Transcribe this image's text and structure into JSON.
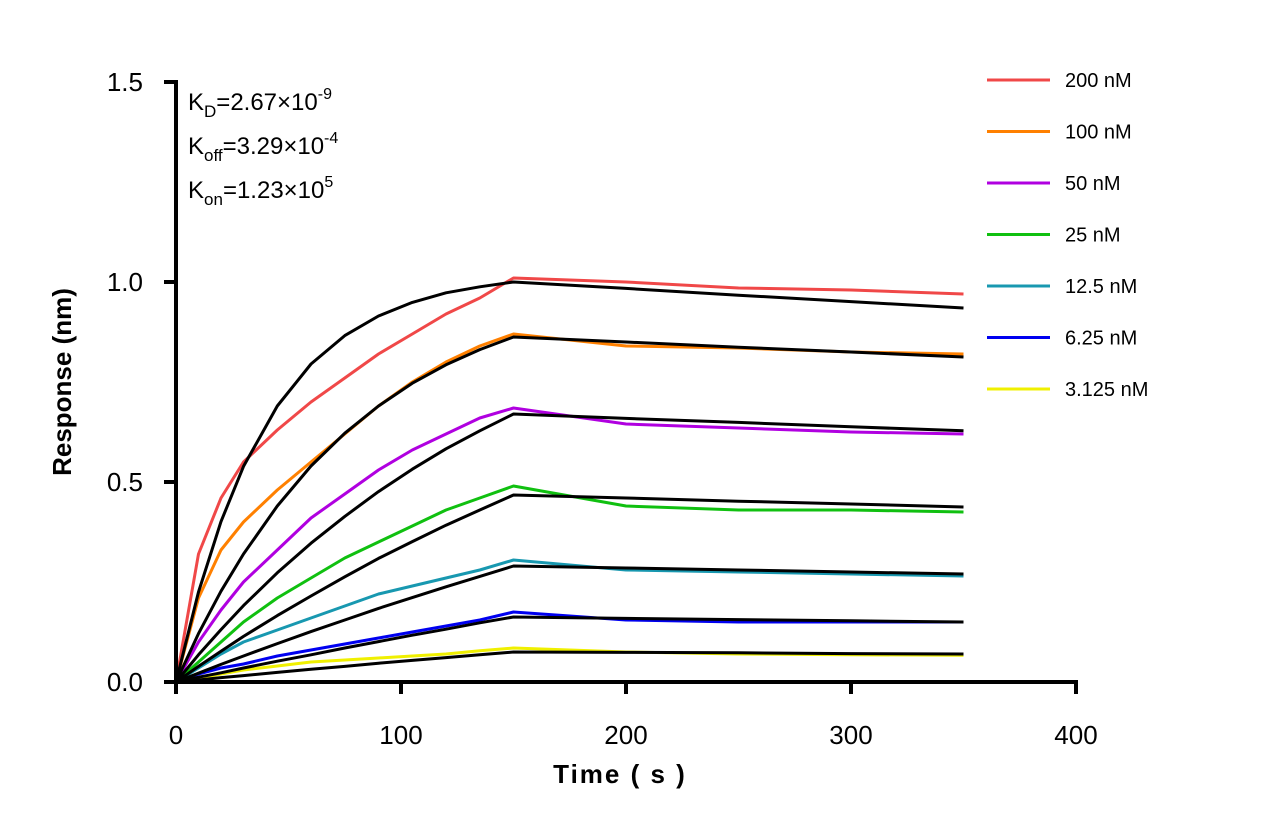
{
  "chart_data": {
    "type": "line",
    "xlabel": "Time ( s )",
    "ylabel": "Response (nm)",
    "xlim": [
      0,
      400
    ],
    "ylim": [
      0,
      1.5
    ],
    "xticks": [
      0,
      100,
      200,
      300,
      400
    ],
    "xtick_labels": [
      "0",
      "100",
      "200",
      "300",
      "400"
    ],
    "yticks": [
      0,
      0.5,
      1.0,
      1.5
    ],
    "ytick_labels": [
      "0.0",
      "0.5",
      "1.0",
      "1.5"
    ],
    "grid": false,
    "legend_position": "top-right",
    "annotations": [
      {
        "symbol": "K",
        "sub": "D",
        "value": "=2.67×10",
        "exp": "-9"
      },
      {
        "symbol": "K",
        "sub": "off",
        "value": "=3.29×10",
        "exp": "-4"
      },
      {
        "symbol": "K",
        "sub": "on",
        "value": "=1.23×10",
        "exp": "5"
      }
    ],
    "x": [
      0,
      10,
      20,
      30,
      45,
      60,
      75,
      90,
      105,
      120,
      135,
      150,
      200,
      250,
      300,
      350
    ],
    "fit_color": "#000000",
    "series": [
      {
        "name": "200 nM",
        "color": "#f04848",
        "values": [
          0,
          0.32,
          0.46,
          0.55,
          0.63,
          0.7,
          0.76,
          0.82,
          0.87,
          0.92,
          0.96,
          1.01,
          1.0,
          0.985,
          0.98,
          0.97
        ],
        "fit": [
          0,
          0.225,
          0.401,
          0.539,
          0.69,
          0.795,
          0.866,
          0.915,
          0.949,
          0.973,
          0.988,
          1.0,
          0.984,
          0.967,
          0.951,
          0.935
        ]
      },
      {
        "name": "100 nM",
        "color": "#ff8000",
        "values": [
          0,
          0.21,
          0.33,
          0.4,
          0.48,
          0.55,
          0.62,
          0.69,
          0.75,
          0.8,
          0.84,
          0.87,
          0.84,
          0.835,
          0.825,
          0.82
        ],
        "fit": [
          0,
          0.121,
          0.227,
          0.32,
          0.44,
          0.54,
          0.622,
          0.69,
          0.747,
          0.793,
          0.831,
          0.8625,
          0.85,
          0.837,
          0.825,
          0.8125
        ]
      },
      {
        "name": "50 nM",
        "color": "#b000e0",
        "values": [
          0,
          0.1,
          0.18,
          0.25,
          0.33,
          0.41,
          0.47,
          0.53,
          0.58,
          0.62,
          0.66,
          0.685,
          0.645,
          0.635,
          0.625,
          0.62
        ],
        "fit": [
          0,
          0.068,
          0.131,
          0.191,
          0.273,
          0.347,
          0.414,
          0.476,
          0.532,
          0.583,
          0.628,
          0.67,
          0.659,
          0.649,
          0.638,
          0.628
        ]
      },
      {
        "name": "25 nM",
        "color": "#10c010",
        "values": [
          0,
          0.05,
          0.1,
          0.15,
          0.21,
          0.26,
          0.31,
          0.35,
          0.39,
          0.43,
          0.46,
          0.49,
          0.44,
          0.43,
          0.43,
          0.425
        ],
        "fit": [
          0,
          0.039,
          0.077,
          0.114,
          0.166,
          0.215,
          0.263,
          0.309,
          0.351,
          0.392,
          0.43,
          0.4675,
          0.46,
          0.452,
          0.445,
          0.4375
        ]
      },
      {
        "name": "12.5 nM",
        "color": "#1898b0",
        "values": [
          0,
          0.035,
          0.07,
          0.1,
          0.13,
          0.16,
          0.19,
          0.22,
          0.24,
          0.26,
          0.28,
          0.305,
          0.28,
          0.275,
          0.27,
          0.265
        ],
        "fit": [
          0,
          0.022,
          0.044,
          0.065,
          0.096,
          0.126,
          0.155,
          0.184,
          0.211,
          0.238,
          0.264,
          0.29,
          0.285,
          0.28,
          0.275,
          0.27
        ]
      },
      {
        "name": "6.25 nM",
        "color": "#0000f0",
        "values": [
          0,
          0.02,
          0.035,
          0.045,
          0.065,
          0.08,
          0.095,
          0.11,
          0.125,
          0.14,
          0.155,
          0.175,
          0.155,
          0.15,
          0.15,
          0.15
        ],
        "fit": [
          0,
          0.012,
          0.023,
          0.035,
          0.052,
          0.068,
          0.085,
          0.101,
          0.117,
          0.132,
          0.148,
          0.1625,
          0.159,
          0.156,
          0.153,
          0.15
        ]
      },
      {
        "name": "3.125 nM",
        "color": "#f0f000",
        "values": [
          0,
          0.01,
          0.02,
          0.03,
          0.04,
          0.05,
          0.055,
          0.06,
          0.065,
          0.07,
          0.078,
          0.085,
          0.075,
          0.07,
          0.068,
          0.067
        ],
        "fit": [
          0,
          0.005,
          0.011,
          0.016,
          0.024,
          0.032,
          0.039,
          0.047,
          0.054,
          0.061,
          0.068,
          0.075,
          0.074,
          0.073,
          0.071,
          0.07
        ]
      }
    ]
  }
}
